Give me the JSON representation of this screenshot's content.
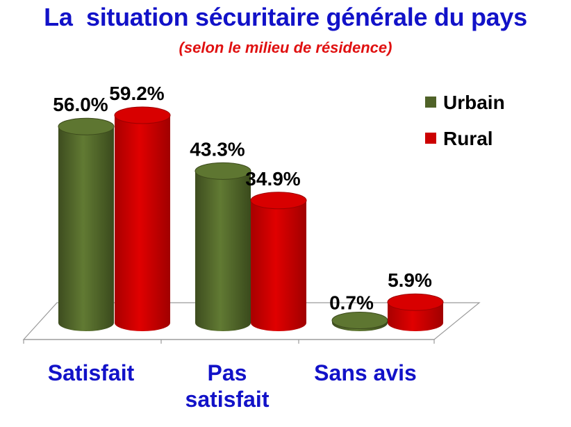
{
  "colors": {
    "title": "#1212c8",
    "subtitle": "#e01010",
    "category": "#1212c8"
  },
  "chart_data": {
    "type": "bar",
    "title": "La  situation sécuritaire générale du pays",
    "subtitle": "(selon le milieu de résidence)",
    "categories": [
      "Satisfait",
      "Pas\nsatisfait",
      "Sans avis"
    ],
    "series": [
      {
        "name": "Urbain",
        "values": [
          56.0,
          43.3,
          0.7
        ],
        "labels": [
          "56.0%",
          "43.3%",
          "0.7%"
        ],
        "color": "#4f6228"
      },
      {
        "name": "Rural",
        "values": [
          59.2,
          34.9,
          5.9
        ],
        "labels": [
          "59.2%",
          "34.9%",
          "5.9%"
        ],
        "color": "#cc0000"
      }
    ],
    "ylim": [
      0,
      60
    ],
    "grid": false,
    "legend": "top-right",
    "style": "3d-cylinder"
  }
}
